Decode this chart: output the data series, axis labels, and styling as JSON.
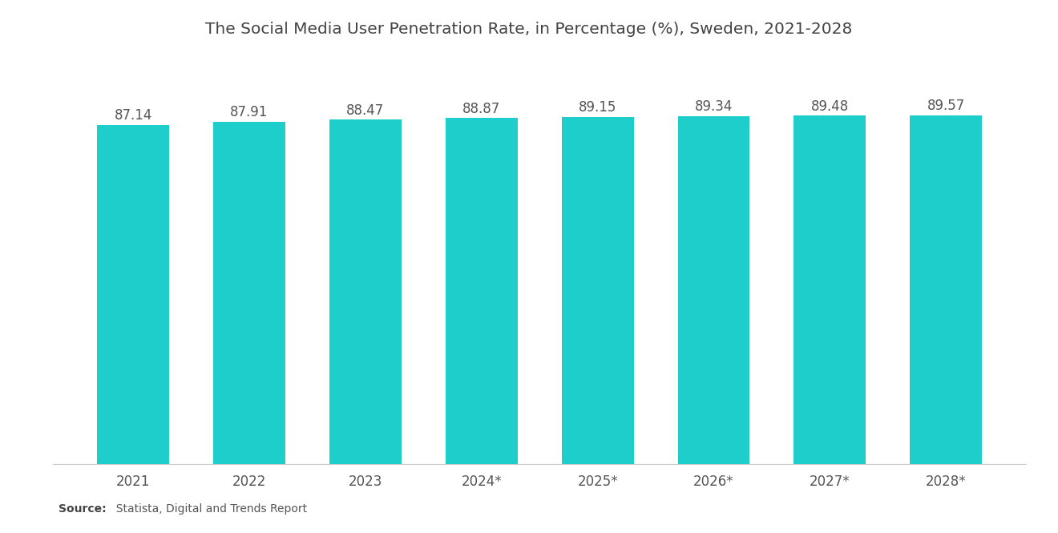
{
  "title": "The Social Media User Penetration Rate, in Percentage (%), Sweden, 2021-2028",
  "categories": [
    "2021",
    "2022",
    "2023",
    "2024*",
    "2025*",
    "2026*",
    "2027*",
    "2028*"
  ],
  "values": [
    87.14,
    87.91,
    88.47,
    88.87,
    89.15,
    89.34,
    89.48,
    89.57
  ],
  "bar_color": "#1ECECA",
  "background_color": "#ffffff",
  "title_fontsize": 14.5,
  "label_fontsize": 12,
  "tick_fontsize": 12,
  "source_bold": "Source:",
  "source_rest": "  Statista, Digital and Trends Report",
  "ylim_min": 0,
  "ylim_max": 100,
  "value_label_color": "#555555",
  "tick_color": "#555555"
}
